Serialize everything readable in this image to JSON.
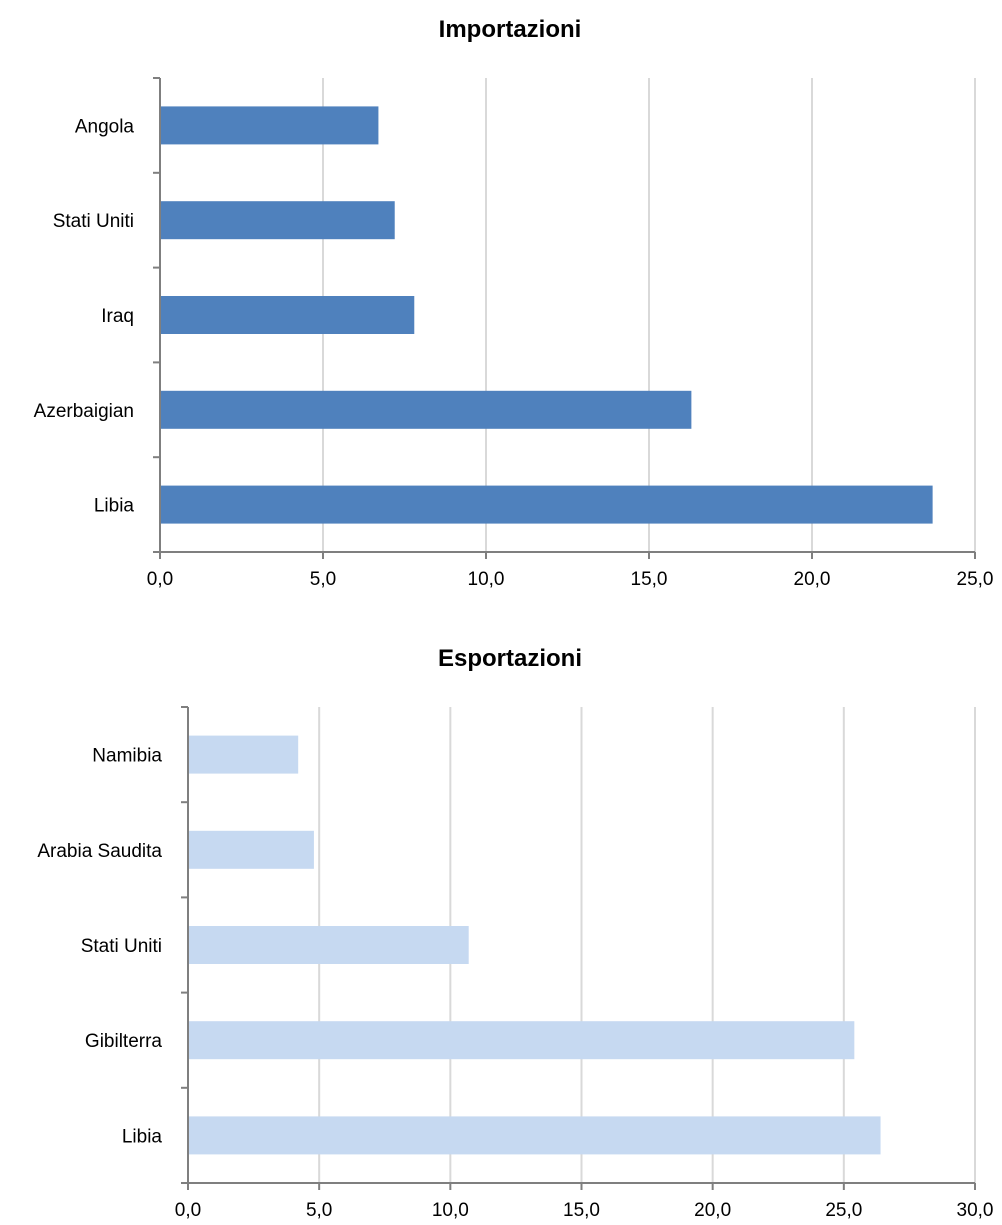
{
  "chart_data": [
    {
      "type": "bar",
      "orientation": "horizontal",
      "title": "Importazioni",
      "categories": [
        "Angola",
        "Stati Uniti",
        "Iraq",
        "Azerbaigian",
        "Libia"
      ],
      "values": [
        6.7,
        7.2,
        7.8,
        16.3,
        23.7
      ],
      "xlim": [
        0,
        25
      ],
      "xticks": [
        "0,0",
        "5,0",
        "10,0",
        "15,0",
        "20,0",
        "25,0"
      ],
      "grid": true,
      "color": "#4f81bd"
    },
    {
      "type": "bar",
      "orientation": "horizontal",
      "title": "Esportazioni",
      "categories": [
        "Namibia",
        "Arabia Saudita",
        "Stati Uniti",
        "Gibilterra",
        "Libia"
      ],
      "values": [
        4.2,
        4.8,
        10.7,
        25.4,
        26.4
      ],
      "xlim": [
        0,
        30
      ],
      "xticks": [
        "0,0",
        "5,0",
        "10,0",
        "15,0",
        "20,0",
        "25,0",
        "30,0"
      ],
      "grid": true,
      "color": "#c6d9f1"
    }
  ]
}
